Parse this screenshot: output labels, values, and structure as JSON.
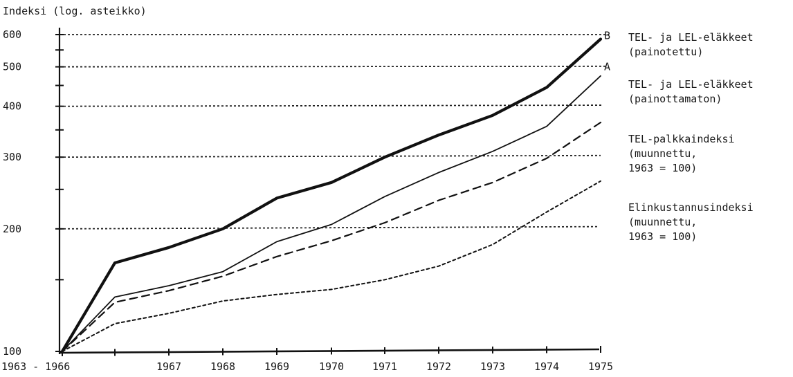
{
  "chart_data": {
    "type": "line",
    "ylabel": "Indeksi (log. asteikko)",
    "yscale": "log",
    "ylim": [
      100,
      640
    ],
    "yticks": [
      100,
      200,
      300,
      400,
      500,
      600
    ],
    "ytick_labels": [
      "100",
      "200",
      "300",
      "400",
      "500",
      "600"
    ],
    "y_minor_ticks": [
      150,
      250,
      350,
      450,
      550
    ],
    "grid": "dotted horizontal lines at 200, 300, 400, 500, 600",
    "x": [
      1963,
      1966,
      1967,
      1968,
      1969,
      1970,
      1971,
      1972,
      1973,
      1974,
      1975
    ],
    "xtick_labels": [
      "1963 - 1966",
      "1967",
      "1968",
      "1969",
      "1970",
      "1971",
      "1972",
      "1973",
      "1974",
      "1975"
    ],
    "series": [
      {
        "key": "B",
        "name": "TEL- ja LEL-eläkkeet (painotettu)",
        "style": "thick-solid",
        "values": [
          100,
          165,
          180,
          200,
          238,
          260,
          300,
          340,
          380,
          445,
          585
        ]
      },
      {
        "key": "A",
        "name": "TEL- ja LEL-eläkkeet (painottamaton)",
        "style": "thin-solid",
        "values": [
          100,
          136,
          145,
          157,
          186,
          205,
          240,
          275,
          310,
          357,
          475
        ]
      },
      {
        "key": "",
        "name": "TEL-palkkaindeksi (muunnettu, 1963 = 100)",
        "style": "dashed",
        "values": [
          100,
          132,
          141,
          153,
          171,
          187,
          207,
          235,
          260,
          298,
          365
        ]
      },
      {
        "key": "",
        "name": "Elinkustannusindeksi (muunnettu, 1963 = 100)",
        "style": "dotted",
        "values": [
          100,
          117,
          124,
          133,
          138,
          142,
          150,
          162,
          183,
          220,
          262
        ]
      }
    ],
    "end_labels": [
      "B",
      "A"
    ],
    "legend": [
      {
        "lines": [
          "TEL- ja LEL-eläkkeet",
          "(painotettu)"
        ]
      },
      {
        "lines": [
          "TEL- ja LEL-eläkkeet",
          "(painottamaton)"
        ]
      },
      {
        "lines": [
          "TEL-palkkaindeksi",
          "(muunnettu,",
          "1963 = 100)"
        ]
      },
      {
        "lines": [
          "Elinkustannusindeksi",
          "(muunnettu,",
          "1963 = 100)"
        ]
      }
    ],
    "legend_position": "right"
  }
}
